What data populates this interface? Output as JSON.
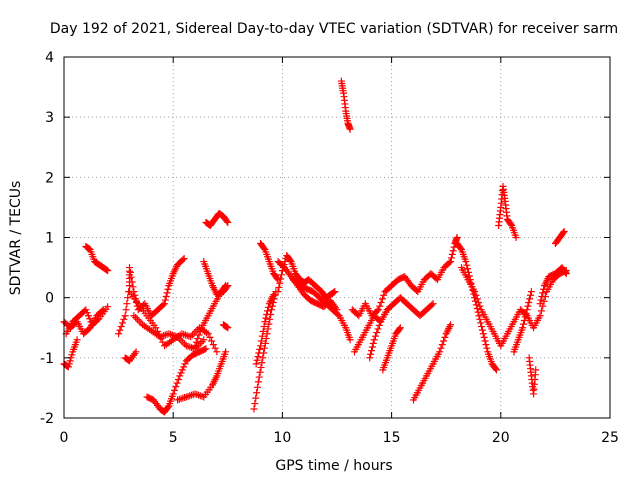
{
  "chart_data": {
    "type": "scatter",
    "title": "Day 192 of 2021, Sidereal Day-to-day VTEC variation (SDTVAR) for receiver sarm",
    "xlabel": "GPS time / hours",
    "ylabel": "SDTVAR / TECUs",
    "xlim": [
      0,
      25
    ],
    "ylim": [
      -2,
      4
    ],
    "xticks": [
      "0",
      "5",
      "10",
      "15",
      "20",
      "25"
    ],
    "yticks": [
      "-2",
      "-1",
      "0",
      "1",
      "2",
      "3",
      "4"
    ],
    "grid": true,
    "marker": "plus",
    "color": "#ff0000",
    "segments": [
      [
        [
          0.0,
          -1.1
        ],
        [
          0.2,
          -1.15
        ],
        [
          0.4,
          -0.9
        ],
        [
          0.6,
          -0.7
        ]
      ],
      [
        [
          0.0,
          -0.4
        ],
        [
          0.3,
          -0.5
        ],
        [
          0.6,
          -0.4
        ],
        [
          0.9,
          -0.6
        ],
        [
          1.2,
          -0.5
        ],
        [
          1.5,
          -0.3
        ],
        [
          1.8,
          -0.2
        ]
      ],
      [
        [
          0.1,
          -0.6
        ],
        [
          0.4,
          -0.4
        ],
        [
          0.7,
          -0.3
        ],
        [
          1.0,
          -0.2
        ],
        [
          1.3,
          -0.45
        ],
        [
          1.6,
          -0.35
        ],
        [
          2.0,
          -0.15
        ]
      ],
      [
        [
          1.0,
          0.85
        ],
        [
          1.2,
          0.8
        ],
        [
          1.4,
          0.6
        ],
        [
          1.6,
          0.55
        ],
        [
          1.8,
          0.5
        ],
        [
          2.0,
          0.45
        ]
      ],
      [
        [
          2.5,
          -0.6
        ],
        [
          2.8,
          -0.3
        ],
        [
          3.0,
          0.2
        ],
        [
          3.0,
          0.5
        ],
        [
          3.2,
          0.1
        ],
        [
          3.4,
          -0.2
        ],
        [
          3.7,
          -0.1
        ],
        [
          4.0,
          -0.3
        ],
        [
          4.3,
          -0.2
        ],
        [
          4.6,
          -0.1
        ],
        [
          4.8,
          0.2
        ],
        [
          5.0,
          0.4
        ],
        [
          5.2,
          0.55
        ],
        [
          5.5,
          0.65
        ]
      ],
      [
        [
          2.8,
          -1.0
        ],
        [
          3.0,
          -1.05
        ],
        [
          3.3,
          -0.9
        ]
      ],
      [
        [
          3.0,
          0.1
        ],
        [
          3.4,
          -0.1
        ],
        [
          3.8,
          -0.3
        ],
        [
          4.2,
          -0.5
        ],
        [
          4.6,
          -0.8
        ],
        [
          5.0,
          -0.7
        ],
        [
          5.4,
          -0.6
        ],
        [
          5.8,
          -0.65
        ],
        [
          6.2,
          -0.5
        ],
        [
          6.6,
          -0.6
        ],
        [
          7.0,
          -0.9
        ]
      ],
      [
        [
          3.2,
          -0.3
        ],
        [
          3.6,
          -0.45
        ],
        [
          4.0,
          -0.55
        ],
        [
          4.4,
          -0.65
        ],
        [
          4.8,
          -0.6
        ],
        [
          5.2,
          -0.65
        ],
        [
          5.6,
          -0.8
        ],
        [
          6.0,
          -0.85
        ],
        [
          6.4,
          -0.7
        ]
      ],
      [
        [
          3.8,
          -1.65
        ],
        [
          4.1,
          -1.7
        ],
        [
          4.4,
          -1.85
        ],
        [
          4.6,
          -1.9
        ],
        [
          4.8,
          -1.8
        ],
        [
          5.0,
          -1.6
        ],
        [
          5.3,
          -1.3
        ],
        [
          5.6,
          -1.05
        ],
        [
          5.9,
          -0.95
        ],
        [
          6.2,
          -0.9
        ],
        [
          6.5,
          -0.85
        ]
      ],
      [
        [
          5.2,
          -1.7
        ],
        [
          5.6,
          -1.65
        ],
        [
          6.0,
          -1.6
        ],
        [
          6.4,
          -1.65
        ],
        [
          6.8,
          -1.45
        ],
        [
          7.0,
          -1.3
        ],
        [
          7.2,
          -1.1
        ],
        [
          7.4,
          -0.9
        ]
      ],
      [
        [
          6.0,
          -0.8
        ],
        [
          6.3,
          -0.5
        ],
        [
          6.6,
          -0.3
        ],
        [
          6.9,
          -0.1
        ],
        [
          7.2,
          0.1
        ],
        [
          7.4,
          0.2
        ]
      ],
      [
        [
          6.4,
          0.6
        ],
        [
          6.6,
          0.4
        ],
        [
          6.8,
          0.2
        ],
        [
          7.0,
          0.05
        ],
        [
          7.3,
          0.1
        ],
        [
          7.5,
          0.2
        ]
      ],
      [
        [
          6.5,
          1.25
        ],
        [
          6.7,
          1.2
        ],
        [
          6.9,
          1.3
        ],
        [
          7.1,
          1.4
        ],
        [
          7.3,
          1.35
        ],
        [
          7.5,
          1.25
        ]
      ],
      [
        [
          7.3,
          -0.45
        ],
        [
          7.5,
          -0.5
        ]
      ],
      [
        [
          8.7,
          -1.85
        ],
        [
          8.9,
          -1.4
        ],
        [
          9.1,
          -1.0
        ],
        [
          9.3,
          -0.6
        ],
        [
          9.5,
          -0.2
        ],
        [
          9.7,
          0.1
        ]
      ],
      [
        [
          8.8,
          -1.1
        ],
        [
          9.0,
          -0.8
        ],
        [
          9.2,
          -0.4
        ],
        [
          9.4,
          -0.1
        ],
        [
          9.6,
          0.05
        ]
      ],
      [
        [
          9.0,
          0.9
        ],
        [
          9.2,
          0.8
        ],
        [
          9.4,
          0.6
        ],
        [
          9.6,
          0.4
        ],
        [
          9.8,
          0.3
        ]
      ],
      [
        [
          9.8,
          0.1
        ],
        [
          10.0,
          0.45
        ],
        [
          10.2,
          0.7
        ],
        [
          10.4,
          0.6
        ],
        [
          10.6,
          0.4
        ],
        [
          10.8,
          0.3
        ],
        [
          11.0,
          0.25
        ],
        [
          11.2,
          0.3
        ],
        [
          11.5,
          0.2
        ],
        [
          11.8,
          0.1
        ],
        [
          12.0,
          0.0
        ],
        [
          12.2,
          0.05
        ],
        [
          12.4,
          0.1
        ]
      ],
      [
        [
          9.8,
          0.6
        ],
        [
          10.1,
          0.5
        ],
        [
          10.4,
          0.35
        ],
        [
          10.7,
          0.2
        ],
        [
          11.0,
          0.05
        ],
        [
          11.3,
          -0.05
        ],
        [
          11.6,
          -0.1
        ],
        [
          11.9,
          -0.15
        ],
        [
          12.2,
          -0.05
        ],
        [
          12.5,
          -0.2
        ]
      ],
      [
        [
          10.5,
          0.3
        ],
        [
          10.8,
          0.2
        ],
        [
          11.1,
          0.15
        ],
        [
          11.4,
          0.1
        ],
        [
          11.7,
          0.0
        ],
        [
          12.0,
          -0.1
        ],
        [
          12.3,
          -0.2
        ],
        [
          12.6,
          -0.3
        ],
        [
          12.9,
          -0.5
        ],
        [
          13.1,
          -0.7
        ]
      ],
      [
        [
          12.7,
          3.6
        ],
        [
          12.8,
          3.4
        ],
        [
          12.9,
          3.1
        ],
        [
          13.0,
          2.9
        ],
        [
          13.1,
          2.8
        ]
      ],
      [
        [
          13.2,
          -0.2
        ],
        [
          13.5,
          -0.3
        ],
        [
          13.8,
          -0.1
        ],
        [
          14.1,
          -0.3
        ],
        [
          14.4,
          -0.2
        ],
        [
          14.7,
          0.1
        ],
        [
          15.0,
          0.2
        ],
        [
          15.3,
          0.3
        ],
        [
          15.6,
          0.35
        ],
        [
          15.9,
          0.2
        ],
        [
          16.2,
          0.1
        ],
        [
          16.5,
          0.3
        ],
        [
          16.8,
          0.4
        ],
        [
          17.1,
          0.3
        ],
        [
          17.4,
          0.5
        ],
        [
          17.7,
          0.6
        ],
        [
          17.9,
          0.9
        ],
        [
          18.0,
          1.0
        ]
      ],
      [
        [
          13.3,
          -0.9
        ],
        [
          13.6,
          -0.7
        ],
        [
          13.9,
          -0.5
        ],
        [
          14.2,
          -0.3
        ],
        [
          14.5,
          -0.4
        ],
        [
          14.8,
          -0.2
        ],
        [
          15.1,
          -0.1
        ],
        [
          15.4,
          0.0
        ],
        [
          15.7,
          -0.1
        ],
        [
          16.0,
          -0.2
        ],
        [
          16.3,
          -0.3
        ],
        [
          16.6,
          -0.2
        ],
        [
          16.9,
          -0.1
        ]
      ],
      [
        [
          14.0,
          -1.0
        ],
        [
          14.2,
          -0.7
        ],
        [
          14.5,
          -0.4
        ],
        [
          14.8,
          -0.2
        ]
      ],
      [
        [
          14.6,
          -1.2
        ],
        [
          14.8,
          -1.0
        ],
        [
          15.0,
          -0.8
        ],
        [
          15.2,
          -0.6
        ],
        [
          15.4,
          -0.5
        ]
      ],
      [
        [
          16.0,
          -1.7
        ],
        [
          16.3,
          -1.5
        ],
        [
          16.6,
          -1.3
        ],
        [
          16.9,
          -1.1
        ],
        [
          17.2,
          -0.9
        ],
        [
          17.5,
          -0.6
        ],
        [
          17.7,
          -0.45
        ]
      ],
      [
        [
          18.0,
          0.9
        ],
        [
          18.2,
          0.8
        ],
        [
          18.4,
          0.6
        ],
        [
          18.6,
          0.3
        ],
        [
          18.8,
          0.0
        ],
        [
          19.0,
          -0.3
        ],
        [
          19.2,
          -0.6
        ],
        [
          19.4,
          -0.9
        ],
        [
          19.6,
          -1.1
        ],
        [
          19.8,
          -1.2
        ]
      ],
      [
        [
          18.2,
          0.5
        ],
        [
          18.5,
          0.3
        ],
        [
          18.8,
          0.1
        ],
        [
          19.1,
          -0.2
        ],
        [
          19.4,
          -0.4
        ],
        [
          19.7,
          -0.6
        ],
        [
          20.0,
          -0.8
        ],
        [
          20.3,
          -0.6
        ],
        [
          20.6,
          -0.4
        ],
        [
          20.9,
          -0.2
        ],
        [
          21.2,
          -0.3
        ],
        [
          21.5,
          -0.5
        ],
        [
          21.8,
          -0.3
        ],
        [
          22.1,
          0.1
        ],
        [
          22.4,
          0.3
        ],
        [
          22.7,
          0.4
        ],
        [
          23.0,
          0.45
        ]
      ],
      [
        [
          19.9,
          1.2
        ],
        [
          20.0,
          1.5
        ],
        [
          20.1,
          1.85
        ],
        [
          20.2,
          1.6
        ],
        [
          20.3,
          1.3
        ],
        [
          20.5,
          1.2
        ],
        [
          20.7,
          1.0
        ]
      ],
      [
        [
          20.6,
          -0.9
        ],
        [
          20.8,
          -0.7
        ],
        [
          21.0,
          -0.5
        ],
        [
          21.2,
          -0.2
        ],
        [
          21.4,
          0.1
        ]
      ],
      [
        [
          21.3,
          -1.0
        ],
        [
          21.4,
          -1.3
        ],
        [
          21.5,
          -1.6
        ],
        [
          21.6,
          -1.2
        ]
      ],
      [
        [
          22.5,
          0.9
        ],
        [
          22.7,
          1.0
        ],
        [
          22.9,
          1.1
        ]
      ],
      [
        [
          21.8,
          -0.1
        ],
        [
          22.0,
          0.2
        ],
        [
          22.2,
          0.35
        ],
        [
          22.5,
          0.4
        ],
        [
          22.8,
          0.5
        ],
        [
          23.0,
          0.4
        ]
      ]
    ]
  }
}
